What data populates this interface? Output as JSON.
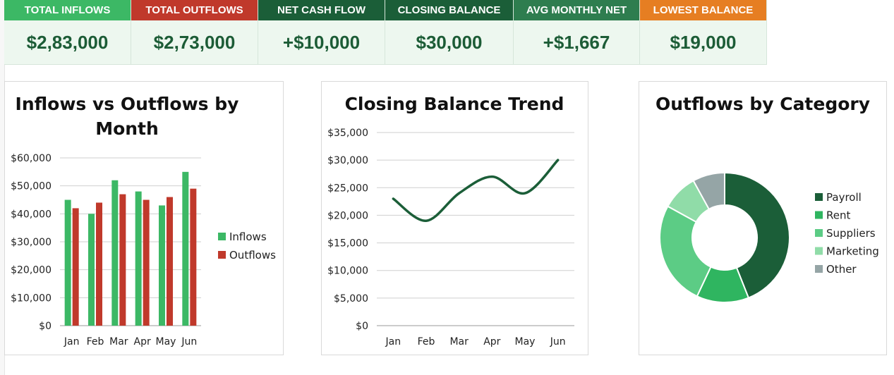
{
  "kpis": [
    {
      "label": "TOTAL INFLOWS",
      "value": "$2,83,000",
      "color": "#3cb865"
    },
    {
      "label": "TOTAL OUTFLOWS",
      "value": "$2,73,000",
      "color": "#c0392b"
    },
    {
      "label": "NET CASH FLOW",
      "value": "+$10,000",
      "color": "#1b5e38"
    },
    {
      "label": "CLOSING BALANCE",
      "value": "$30,000",
      "color": "#1b5e38"
    },
    {
      "label": "AVG MONTHLY NET",
      "value": "+$1,667",
      "color": "#2e7d4f"
    },
    {
      "label": "LOWEST BALANCE",
      "value": "$19,000",
      "color": "#e67e22"
    }
  ],
  "chart_data": [
    {
      "type": "bar",
      "title": [
        "Inflows vs Outflows by",
        "Month"
      ],
      "categories": [
        "Jan",
        "Feb",
        "Mar",
        "Apr",
        "May",
        "Jun"
      ],
      "series": [
        {
          "name": "Inflows",
          "values": [
            45000,
            40000,
            52000,
            48000,
            43000,
            55000
          ],
          "color": "#3cb865"
        },
        {
          "name": "Outflows",
          "values": [
            42000,
            44000,
            47000,
            45000,
            46000,
            49000
          ],
          "color": "#c0392b"
        }
      ],
      "ylim": [
        0,
        60000
      ],
      "yticks": [
        "$0",
        "$10,000",
        "$20,000",
        "$30,000",
        "$40,000",
        "$50,000",
        "$60,000"
      ],
      "grid": true,
      "legend": "right"
    },
    {
      "type": "line",
      "title": "Closing Balance Trend",
      "categories": [
        "Jan",
        "Feb",
        "Mar",
        "Apr",
        "May",
        "Jun"
      ],
      "series": [
        {
          "values": [
            23000,
            19000,
            24000,
            27000,
            24000,
            30000
          ],
          "color": "#1b5e38"
        }
      ],
      "ylim": [
        0,
        35000
      ],
      "yticks": [
        "$0",
        "$5,000",
        "$10,000",
        "$15,000",
        "$20,000",
        "$25,000",
        "$30,000",
        "$35,000"
      ],
      "grid": true,
      "smooth": true
    },
    {
      "type": "pie",
      "title": "Outflows by Category",
      "donut": true,
      "labels": [
        "Payroll",
        "Rent",
        "Suppliers",
        "Marketing",
        "Other"
      ],
      "values": [
        44,
        13,
        26,
        9,
        8
      ],
      "colors": [
        "#1b5e38",
        "#2fb560",
        "#5ccc85",
        "#90dca8",
        "#95a5a6"
      ],
      "legend": "right"
    }
  ]
}
